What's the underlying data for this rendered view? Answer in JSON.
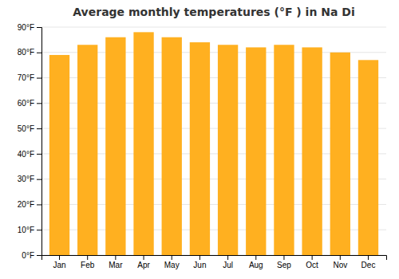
{
  "chart_data": {
    "type": "bar",
    "title": "Average monthly temperatures (°F ) in Na Di",
    "categories": [
      "Jan",
      "Feb",
      "Mar",
      "Apr",
      "May",
      "Jun",
      "Jul",
      "Aug",
      "Sep",
      "Oct",
      "Nov",
      "Dec"
    ],
    "values": [
      79,
      83,
      86,
      88,
      86,
      84,
      83,
      82,
      83,
      82,
      80,
      77
    ],
    "color": "#FFB020",
    "ylim": [
      0,
      90
    ],
    "yticks": [
      {
        "value": 0,
        "label": "0°F"
      },
      {
        "value": 10,
        "label": "10°F"
      },
      {
        "value": 20,
        "label": "20°F"
      },
      {
        "value": 30,
        "label": "30°F"
      },
      {
        "value": 40,
        "label": "40°F"
      },
      {
        "value": 50,
        "label": "50°F"
      },
      {
        "value": 60,
        "label": "60°F"
      },
      {
        "value": 70,
        "label": "70°F"
      },
      {
        "value": 80,
        "label": "80°F"
      },
      {
        "value": 90,
        "label": "90°F"
      }
    ],
    "grid": true
  }
}
